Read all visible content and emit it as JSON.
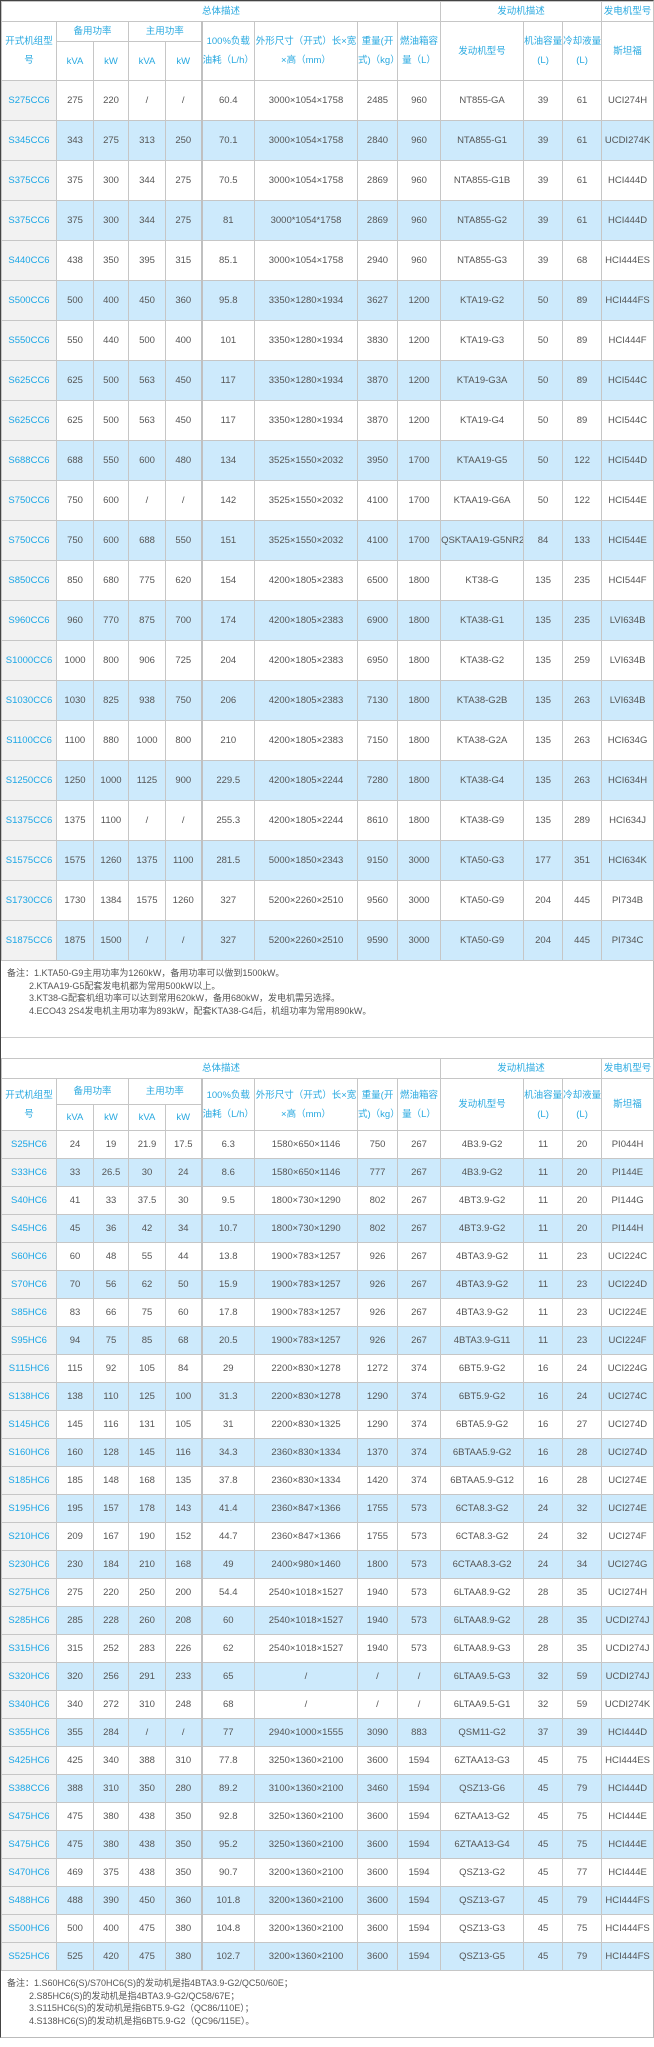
{
  "header": {
    "group_general": "总体描述",
    "group_engine": "发动机描述",
    "group_alternator": "发电机型号",
    "model": "开式机组型号",
    "standby_power": "备用功率",
    "prime_power": "主用功率",
    "kva": "kVA",
    "kw": "kW",
    "fuel_consumption": "100%负载油耗（L/h）",
    "dimensions": "外形尺寸（开式）长×宽×高（mm）",
    "weight": "重量(开式)（kg）",
    "fuel_tank": "燃油箱容量（L）",
    "engine_model": "发动机型号",
    "oil_capacity": "机油容量(L)",
    "coolant": "冷却液量(L)",
    "stamford": "斯坦福"
  },
  "colors": {
    "accent": "#29a9e0",
    "row_alt": "#cdeafc",
    "model_bg": "#f2f2f2"
  },
  "table1": {
    "rows": [
      [
        "S275CC6",
        "275",
        "220",
        "/",
        "/",
        "60.4",
        "3000×1054×1758",
        "2485",
        "960",
        "NT855-GA",
        "39",
        "61",
        "UCI274H"
      ],
      [
        "S345CC6",
        "343",
        "275",
        "313",
        "250",
        "70.1",
        "3000×1054×1758",
        "2840",
        "960",
        "NTA855-G1",
        "39",
        "61",
        "UCDI274K"
      ],
      [
        "S375CC6",
        "375",
        "300",
        "344",
        "275",
        "70.5",
        "3000×1054×1758",
        "2869",
        "960",
        "NTA855-G1B",
        "39",
        "61",
        "HCI444D"
      ],
      [
        "S375CC6",
        "375",
        "300",
        "344",
        "275",
        "81",
        "3000*1054*1758",
        "2869",
        "960",
        "NTA855-G2",
        "39",
        "61",
        "HCI444D"
      ],
      [
        "S440CC6",
        "438",
        "350",
        "395",
        "315",
        "85.1",
        "3000×1054×1758",
        "2940",
        "960",
        "NTA855-G3",
        "39",
        "68",
        "HCI444ES"
      ],
      [
        "S500CC6",
        "500",
        "400",
        "450",
        "360",
        "95.8",
        "3350×1280×1934",
        "3627",
        "1200",
        "KTA19-G2",
        "50",
        "89",
        "HCI444FS"
      ],
      [
        "S550CC6",
        "550",
        "440",
        "500",
        "400",
        "101",
        "3350×1280×1934",
        "3830",
        "1200",
        "KTA19-G3",
        "50",
        "89",
        "HCI444F"
      ],
      [
        "S625CC6",
        "625",
        "500",
        "563",
        "450",
        "117",
        "3350×1280×1934",
        "3870",
        "1200",
        "KTA19-G3A",
        "50",
        "89",
        "HCI544C"
      ],
      [
        "S625CC6",
        "625",
        "500",
        "563",
        "450",
        "117",
        "3350×1280×1934",
        "3870",
        "1200",
        "KTA19-G4",
        "50",
        "89",
        "HCI544C"
      ],
      [
        "S688CC6",
        "688",
        "550",
        "600",
        "480",
        "134",
        "3525×1550×2032",
        "3950",
        "1700",
        "KTAA19-G5",
        "50",
        "122",
        "HCI544D"
      ],
      [
        "S750CC6",
        "750",
        "600",
        "/",
        "/",
        "142",
        "3525×1550×2032",
        "4100",
        "1700",
        "KTAA19-G6A",
        "50",
        "122",
        "HCI544E"
      ],
      [
        "S750CC6",
        "750",
        "600",
        "688",
        "550",
        "151",
        "3525×1550×2032",
        "4100",
        "1700",
        "QSKTAA19-G5NR2",
        "84",
        "133",
        "HCI544E"
      ],
      [
        "S850CC6",
        "850",
        "680",
        "775",
        "620",
        "154",
        "4200×1805×2383",
        "6500",
        "1800",
        "KT38-G",
        "135",
        "235",
        "HCI544F"
      ],
      [
        "S960CC6",
        "960",
        "770",
        "875",
        "700",
        "174",
        "4200×1805×2383",
        "6900",
        "1800",
        "KTA38-G1",
        "135",
        "235",
        "LVI634B"
      ],
      [
        "S1000CC6",
        "1000",
        "800",
        "906",
        "725",
        "204",
        "4200×1805×2383",
        "6950",
        "1800",
        "KTA38-G2",
        "135",
        "259",
        "LVI634B"
      ],
      [
        "S1030CC6",
        "1030",
        "825",
        "938",
        "750",
        "206",
        "4200×1805×2383",
        "7130",
        "1800",
        "KTA38-G2B",
        "135",
        "263",
        "LVI634B"
      ],
      [
        "S1100CC6",
        "1100",
        "880",
        "1000",
        "800",
        "210",
        "4200×1805×2383",
        "7150",
        "1800",
        "KTA38-G2A",
        "135",
        "263",
        "HCI634G"
      ],
      [
        "S1250CC6",
        "1250",
        "1000",
        "1125",
        "900",
        "229.5",
        "4200×1805×2244",
        "7280",
        "1800",
        "KTA38-G4",
        "135",
        "263",
        "HCI634H"
      ],
      [
        "S1375CC6",
        "1375",
        "1100",
        "/",
        "/",
        "255.3",
        "4200×1805×2244",
        "8610",
        "1800",
        "KTA38-G9",
        "135",
        "289",
        "HCI634J"
      ],
      [
        "S1575CC6",
        "1575",
        "1260",
        "1375",
        "1100",
        "281.5",
        "5000×1850×2343",
        "9150",
        "3000",
        "KTA50-G3",
        "177",
        "351",
        "HCI634K"
      ],
      [
        "S1730CC6",
        "1730",
        "1384",
        "1575",
        "1260",
        "327",
        "5200×2260×2510",
        "9560",
        "3000",
        "KTA50-G9",
        "204",
        "445",
        "PI734B"
      ],
      [
        "S1875CC6",
        "1875",
        "1500",
        "/",
        "/",
        "327",
        "5200×2260×2510",
        "9590",
        "3000",
        "KTA50-G9",
        "204",
        "445",
        "PI734C"
      ]
    ],
    "notes": [
      "备注：1.KTA50-G9主用功率为1260kW，备用功率可以做到1500kW。",
      "2.KTAA19-G5配套发电机都为常用500kW以上。",
      "3.KT38-G配套机组功率可以达到常用620kW，备用680kW，发电机需另选择。",
      "4.ECO43 2S4发电机主用功率为893kW，配套KTA38-G4后，机组功率为常用890kW。"
    ]
  },
  "table2": {
    "rows": [
      [
        "S25HC6",
        "24",
        "19",
        "21.9",
        "17.5",
        "6.3",
        "1580×650×1146",
        "750",
        "267",
        "4B3.9-G2",
        "11",
        "20",
        "PI044H"
      ],
      [
        "S33HC6",
        "33",
        "26.5",
        "30",
        "24",
        "8.6",
        "1580×650×1146",
        "777",
        "267",
        "4B3.9-G2",
        "11",
        "20",
        "PI144E"
      ],
      [
        "S40HC6",
        "41",
        "33",
        "37.5",
        "30",
        "9.5",
        "1800×730×1290",
        "802",
        "267",
        "4BT3.9-G2",
        "11",
        "20",
        "PI144G"
      ],
      [
        "S45HC6",
        "45",
        "36",
        "42",
        "34",
        "10.7",
        "1800×730×1290",
        "802",
        "267",
        "4BT3.9-G2",
        "11",
        "20",
        "PI144H"
      ],
      [
        "S60HC6",
        "60",
        "48",
        "55",
        "44",
        "13.8",
        "1900×783×1257",
        "926",
        "267",
        "4BTA3.9-G2",
        "11",
        "23",
        "UCI224C"
      ],
      [
        "S70HC6",
        "70",
        "56",
        "62",
        "50",
        "15.9",
        "1900×783×1257",
        "926",
        "267",
        "4BTA3.9-G2",
        "11",
        "23",
        "UCI224D"
      ],
      [
        "S85HC6",
        "83",
        "66",
        "75",
        "60",
        "17.8",
        "1900×783×1257",
        "926",
        "267",
        "4BTA3.9-G2",
        "11",
        "23",
        "UCI224E"
      ],
      [
        "S95HC6",
        "94",
        "75",
        "85",
        "68",
        "20.5",
        "1900×783×1257",
        "926",
        "267",
        "4BTA3.9-G11",
        "11",
        "23",
        "UCI224F"
      ],
      [
        "S115HC6",
        "115",
        "92",
        "105",
        "84",
        "29",
        "2200×830×1278",
        "1272",
        "374",
        "6BT5.9-G2",
        "16",
        "24",
        "UCI224G"
      ],
      [
        "S138HC6",
        "138",
        "110",
        "125",
        "100",
        "31.3",
        "2200×830×1278",
        "1290",
        "374",
        "6BT5.9-G2",
        "16",
        "24",
        "UCI274C"
      ],
      [
        "S145HC6",
        "145",
        "116",
        "131",
        "105",
        "31",
        "2200×830×1325",
        "1290",
        "374",
        "6BTA5.9-G2",
        "16",
        "27",
        "UCI274D"
      ],
      [
        "S160HC6",
        "160",
        "128",
        "145",
        "116",
        "34.3",
        "2360×830×1334",
        "1370",
        "374",
        "6BTAA5.9-G2",
        "16",
        "28",
        "UCI274D"
      ],
      [
        "S185HC6",
        "185",
        "148",
        "168",
        "135",
        "37.8",
        "2360×830×1334",
        "1420",
        "374",
        "6BTAA5.9-G12",
        "16",
        "28",
        "UCI274E"
      ],
      [
        "S195HC6",
        "195",
        "157",
        "178",
        "143",
        "41.4",
        "2360×847×1366",
        "1755",
        "573",
        "6CTA8.3-G2",
        "24",
        "32",
        "UCI274E"
      ],
      [
        "S210HC6",
        "209",
        "167",
        "190",
        "152",
        "44.7",
        "2360×847×1366",
        "1755",
        "573",
        "6CTA8.3-G2",
        "24",
        "32",
        "UCI274F"
      ],
      [
        "S230HC6",
        "230",
        "184",
        "210",
        "168",
        "49",
        "2400×980×1460",
        "1800",
        "573",
        "6CTAA8.3-G2",
        "24",
        "34",
        "UCI274G"
      ],
      [
        "S275HC6",
        "275",
        "220",
        "250",
        "200",
        "54.4",
        "2540×1018×1527",
        "1940",
        "573",
        "6LTAA8.9-G2",
        "28",
        "35",
        "UCI274H"
      ],
      [
        "S285HC6",
        "285",
        "228",
        "260",
        "208",
        "60",
        "2540×1018×1527",
        "1940",
        "573",
        "6LTAA8.9-G2",
        "28",
        "35",
        "UCDI274J"
      ],
      [
        "S315HC6",
        "315",
        "252",
        "283",
        "226",
        "62",
        "2540×1018×1527",
        "1940",
        "573",
        "6LTAA8.9-G3",
        "28",
        "35",
        "UCDI274J"
      ],
      [
        "S320HC6",
        "320",
        "256",
        "291",
        "233",
        "65",
        "/",
        "/",
        "/",
        "6LTAA9.5-G3",
        "32",
        "59",
        "UCDI274J"
      ],
      [
        "S340HC6",
        "340",
        "272",
        "310",
        "248",
        "68",
        "/",
        "/",
        "/",
        "6LTAA9.5-G1",
        "32",
        "59",
        "UCDI274K"
      ],
      [
        "S355HC6",
        "355",
        "284",
        "/",
        "/",
        "77",
        "2940×1000×1555",
        "3090",
        "883",
        "QSM11-G2",
        "37",
        "39",
        "HCI444D"
      ],
      [
        "S425HC6",
        "425",
        "340",
        "388",
        "310",
        "77.8",
        "3250×1360×2100",
        "3600",
        "1594",
        "6ZTAA13-G3",
        "45",
        "75",
        "HCI444ES"
      ],
      [
        "S388CC6",
        "388",
        "310",
        "350",
        "280",
        "89.2",
        "3100×1360×2100",
        "3460",
        "1594",
        "QSZ13-G6",
        "45",
        "79",
        "HCI444D"
      ],
      [
        "S475HC6",
        "475",
        "380",
        "438",
        "350",
        "92.8",
        "3250×1360×2100",
        "3600",
        "1594",
        "6ZTAA13-G2",
        "45",
        "75",
        "HCI444E"
      ],
      [
        "S475HC6",
        "475",
        "380",
        "438",
        "350",
        "95.2",
        "3250×1360×2100",
        "3600",
        "1594",
        "6ZTAA13-G4",
        "45",
        "75",
        "HCI444E"
      ],
      [
        "S470HC6",
        "469",
        "375",
        "438",
        "350",
        "90.7",
        "3200×1360×2100",
        "3600",
        "1594",
        "QSZ13-G2",
        "45",
        "77",
        "HCI444E"
      ],
      [
        "S488HC6",
        "488",
        "390",
        "450",
        "360",
        "101.8",
        "3200×1360×2100",
        "3600",
        "1594",
        "QSZ13-G7",
        "45",
        "79",
        "HCI444FS"
      ],
      [
        "S500HC6",
        "500",
        "400",
        "475",
        "380",
        "104.8",
        "3200×1360×2100",
        "3600",
        "1594",
        "QSZ13-G3",
        "45",
        "75",
        "HCI444FS"
      ],
      [
        "S525HC6",
        "525",
        "420",
        "475",
        "380",
        "102.7",
        "3200×1360×2100",
        "3600",
        "1594",
        "QSZ13-G5",
        "45",
        "79",
        "HCI444FS"
      ]
    ],
    "notes": [
      "备注：1.S60HC6(S)/S70HC6(S)的发动机是指4BTA3.9-G2/QC50/60E；",
      "2.S85HC6(S)的发动机是指4BTA3.9-G2/QC58/67E；",
      "3.S115HC6(S)的发动机是指6BT5.9-G2（QC86/110E）；",
      "4.S138HC6(S)的发动机是指6BT5.9-G2（QC96/115E）。"
    ]
  }
}
